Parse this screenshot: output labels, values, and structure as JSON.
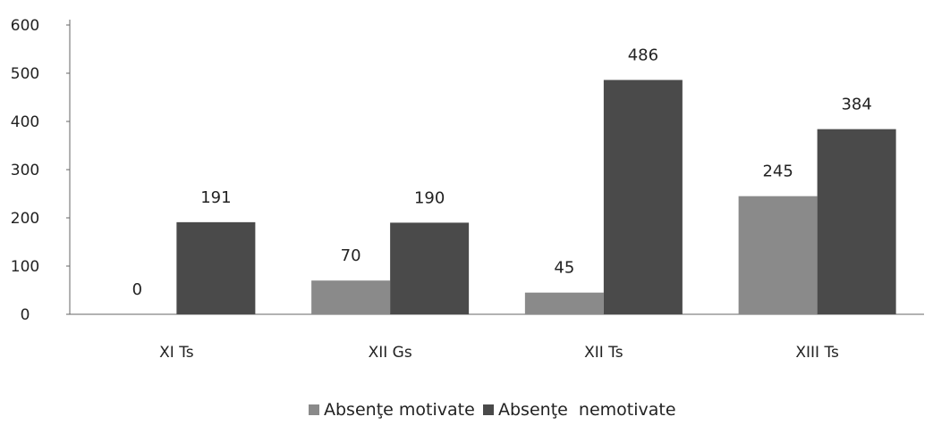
{
  "chart_data": {
    "type": "bar",
    "categories": [
      "XI Ts",
      "XII Gs",
      "XII Ts",
      "XIII Ts"
    ],
    "series": [
      {
        "name": "Absenţe motivate",
        "values": [
          0,
          70,
          45,
          245
        ],
        "color": "#8a8a8a"
      },
      {
        "name": "Absenţe  nemotivate",
        "values": [
          191,
          190,
          486,
          384
        ],
        "color": "#4a4a4a"
      }
    ],
    "title": "",
    "xlabel": "",
    "ylabel": "",
    "ylim": [
      0,
      600
    ],
    "yticks": [
      0,
      100,
      200,
      300,
      400,
      500,
      600
    ],
    "grid": false,
    "legend": "bottom",
    "data_labels": true
  }
}
